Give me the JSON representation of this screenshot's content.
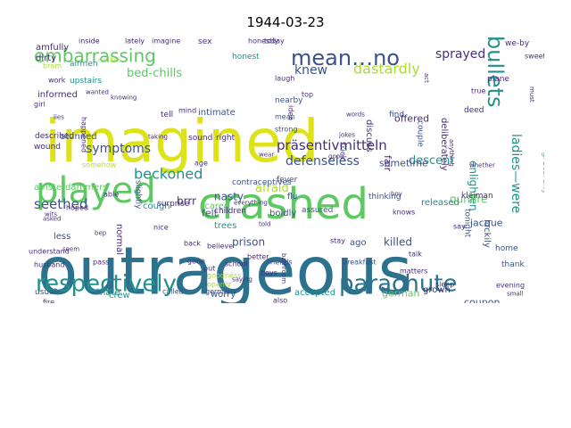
{
  "title": "1944-03-23",
  "palette": {
    "teal": "#2c728e",
    "blue": "#3b528b",
    "purple": "#472d7b",
    "green": "#5ec962",
    "lime": "#addc30",
    "yellow": "#dde318",
    "sea": "#21918c",
    "dark": "#440154"
  },
  "words": [
    {
      "text": "outrageous",
      "color": "#2c728e"
    },
    {
      "text": "imagined",
      "color": "#dde318"
    },
    {
      "text": "crashed",
      "color": "#5ec962"
    },
    {
      "text": "played",
      "color": "#5ec962"
    },
    {
      "text": "respectively",
      "color": "#21918c"
    },
    {
      "text": "parachute",
      "color": "#2c728e"
    },
    {
      "text": "mean…no",
      "color": "#3b528b"
    },
    {
      "text": "embarrassing",
      "color": "#5ec962"
    },
    {
      "text": "bullets",
      "color": "#21918c"
    },
    {
      "text": "symptoms",
      "color": "#3b528b"
    },
    {
      "text": "präsentivmitteln",
      "color": "#472d7b"
    },
    {
      "text": "beckoned",
      "color": "#21918c"
    },
    {
      "text": "seethed",
      "color": "#3b528b"
    },
    {
      "text": "defenseless",
      "color": "#3b528b"
    },
    {
      "text": "dastardly",
      "color": "#addc30"
    },
    {
      "text": "knew",
      "color": "#3b528b"
    },
    {
      "text": "descent",
      "color": "#21918c"
    },
    {
      "text": "bed-chills",
      "color": "#5ec962"
    },
    {
      "text": "sprayed",
      "color": "#472d7b"
    },
    {
      "text": "ladies—were",
      "color": "#21918c"
    },
    {
      "text": "enlighten",
      "color": "#21918c"
    },
    {
      "text": "afraid",
      "color": "#addc30"
    },
    {
      "text": "sometime",
      "color": "#3b528b"
    },
    {
      "text": "brrr",
      "color": "#472d7b"
    },
    {
      "text": "nasty",
      "color": "#3b528b"
    },
    {
      "text": "prison",
      "color": "#3b528b"
    },
    {
      "text": "killed",
      "color": "#3b528b"
    },
    {
      "text": "coupon",
      "color": "#3b528b"
    },
    {
      "text": "accepted",
      "color": "#21918c"
    },
    {
      "text": "amsterdammers",
      "color": "#5ec962"
    },
    {
      "text": "hate",
      "color": "#21918c"
    },
    {
      "text": "felt",
      "color": "#3b528b"
    },
    {
      "text": "trees",
      "color": "#21918c"
    },
    {
      "text": "worry",
      "color": "#3b528b"
    },
    {
      "text": "crew",
      "color": "#21918c"
    },
    {
      "text": "boldly",
      "color": "#3b528b"
    },
    {
      "text": "offered",
      "color": "#472d7b"
    },
    {
      "text": "gunfire",
      "color": "#5ec962"
    },
    {
      "text": "gratefully",
      "color": "#5ec962"
    },
    {
      "text": "jacque",
      "color": "#3b528b"
    },
    {
      "text": "luckily",
      "color": "#3b528b"
    },
    {
      "text": "amfully",
      "color": "#472d7b"
    },
    {
      "text": "dirty",
      "color": "#472d7b"
    },
    {
      "text": "airmen",
      "color": "#21918c"
    },
    {
      "text": "sex",
      "color": "#472d7b"
    },
    {
      "text": "honest",
      "color": "#21918c"
    },
    {
      "text": "nearby",
      "color": "#3b528b"
    },
    {
      "text": "intimate",
      "color": "#3b528b"
    },
    {
      "text": "described",
      "color": "#472d7b"
    },
    {
      "text": "wound",
      "color": "#472d7b"
    },
    {
      "text": "cough",
      "color": "#21918c"
    },
    {
      "text": "scared",
      "color": "#5ec962"
    },
    {
      "text": "contraceptives",
      "color": "#3b528b"
    },
    {
      "text": "fever",
      "color": "#3b528b"
    },
    {
      "text": "flu",
      "color": "#3b528b"
    },
    {
      "text": "assured",
      "color": "#3b528b"
    },
    {
      "text": "released",
      "color": "#21918c"
    },
    {
      "text": "discuss",
      "color": "#472d7b"
    },
    {
      "text": "fair",
      "color": "#472d7b"
    },
    {
      "text": "thinking",
      "color": "#3b528b"
    },
    {
      "text": "german",
      "color": "#5ec962"
    },
    {
      "text": "grown",
      "color": "#472d7b"
    },
    {
      "text": "kleiman",
      "color": "#472d7b"
    },
    {
      "text": "ago",
      "color": "#3b528b"
    },
    {
      "text": "less",
      "color": "#3b528b"
    },
    {
      "text": "pass",
      "color": "#472d7b"
    },
    {
      "text": "slightly",
      "color": "#3b528b"
    },
    {
      "text": "deliberately",
      "color": "#472d7b"
    },
    {
      "text": "deed",
      "color": "#472d7b"
    },
    {
      "text": "plane",
      "color": "#472d7b"
    },
    {
      "text": "sound",
      "color": "#472d7b"
    },
    {
      "text": "right",
      "color": "#472d7b"
    },
    {
      "text": "tell",
      "color": "#472d7b"
    },
    {
      "text": "mean",
      "color": "#3b528b"
    },
    {
      "text": "strong",
      "color": "#3b528b"
    },
    {
      "text": "trick",
      "color": "#3b528b"
    },
    {
      "text": "couple",
      "color": "#3b528b"
    },
    {
      "text": "find",
      "color": "#3b528b"
    },
    {
      "text": "thank",
      "color": "#3b528b"
    },
    {
      "text": "home",
      "color": "#3b528b"
    },
    {
      "text": "inside",
      "color": "#472d7b"
    },
    {
      "text": "lately",
      "color": "#472d7b"
    },
    {
      "text": "imagine",
      "color": "#472d7b"
    },
    {
      "text": "honestly",
      "color": "#472d7b"
    },
    {
      "text": "today",
      "color": "#472d7b"
    },
    {
      "text": "we-by",
      "color": "#472d7b"
    },
    {
      "text": "upstairs",
      "color": "#21918c"
    },
    {
      "text": "stunned",
      "color": "#3b528b"
    },
    {
      "text": "tonight",
      "color": "#3b528b"
    },
    {
      "text": "friends",
      "color": "#3b528b"
    },
    {
      "text": "breakfast",
      "color": "#3b528b"
    },
    {
      "text": "germans",
      "color": "#3b528b"
    },
    {
      "text": "called",
      "color": "#3b528b"
    },
    {
      "text": "usual",
      "color": "#3b528b"
    },
    {
      "text": "fire",
      "color": "#472d7b"
    },
    {
      "text": "husband",
      "color": "#472d7b"
    },
    {
      "text": "understand",
      "color": "#472d7b"
    },
    {
      "text": "gone",
      "color": "#472d7b"
    },
    {
      "text": "back",
      "color": "#472d7b"
    },
    {
      "text": "better",
      "color": "#472d7b"
    },
    {
      "text": "believe",
      "color": "#472d7b"
    },
    {
      "text": "nice",
      "color": "#472d7b"
    },
    {
      "text": "put",
      "color": "#472d7b"
    },
    {
      "text": "boys",
      "color": "#472d7b"
    },
    {
      "text": "talk",
      "color": "#472d7b"
    },
    {
      "text": "stay",
      "color": "#472d7b"
    },
    {
      "text": "say",
      "color": "#472d7b"
    },
    {
      "text": "evening",
      "color": "#472d7b"
    },
    {
      "text": "small",
      "color": "#472d7b"
    },
    {
      "text": "sweet",
      "color": "#472d7b"
    },
    {
      "text": "must",
      "color": "#472d7b"
    },
    {
      "text": "informed",
      "color": "#472d7b"
    },
    {
      "text": "bram",
      "color": "#addc30"
    },
    {
      "text": "laugh",
      "color": "#472d7b"
    },
    {
      "text": "girl",
      "color": "#472d7b"
    },
    {
      "text": "act",
      "color": "#472d7b"
    },
    {
      "text": "top",
      "color": "#472d7b"
    },
    {
      "text": "boy",
      "color": "#472d7b"
    },
    {
      "text": "knows",
      "color": "#472d7b"
    },
    {
      "text": "children",
      "color": "#472d7b"
    },
    {
      "text": "goodness",
      "color": "#addc30"
    },
    {
      "text": "also",
      "color": "#472d7b"
    },
    {
      "text": "sleep",
      "color": "#472d7b"
    },
    {
      "text": "matters",
      "color": "#472d7b"
    },
    {
      "text": "bathroom",
      "color": "#472d7b"
    },
    {
      "text": "neither",
      "color": "#addc30"
    },
    {
      "text": "work",
      "color": "#472d7b"
    },
    {
      "text": "true",
      "color": "#472d7b"
    },
    {
      "text": "mind",
      "color": "#472d7b"
    },
    {
      "text": "age",
      "color": "#472d7b"
    },
    {
      "text": "surprise",
      "color": "#472d7b"
    },
    {
      "text": "normal",
      "color": "#472d7b"
    },
    {
      "text": "school",
      "color": "#472d7b"
    },
    {
      "text": "openly",
      "color": "#addc30"
    },
    {
      "text": "somehow",
      "color": "#addc30"
    },
    {
      "text": "wits",
      "color": "#472d7b"
    },
    {
      "text": "hoped",
      "color": "#472d7b"
    },
    {
      "text": "seem",
      "color": "#472d7b"
    },
    {
      "text": "asked",
      "color": "#472d7b"
    },
    {
      "text": "able",
      "color": "#472d7b"
    },
    {
      "text": "bep",
      "color": "#472d7b"
    },
    {
      "text": "taking",
      "color": "#472d7b"
    },
    {
      "text": "knowing",
      "color": "#472d7b"
    },
    {
      "text": "wanted",
      "color": "#472d7b"
    },
    {
      "text": "happened",
      "color": "#472d7b"
    },
    {
      "text": "anything",
      "color": "#472d7b"
    },
    {
      "text": "whether",
      "color": "#472d7b"
    },
    {
      "text": "everything",
      "color": "#472d7b"
    },
    {
      "text": "saying",
      "color": "#472d7b"
    },
    {
      "text": "told",
      "color": "#472d7b"
    },
    {
      "text": "idea",
      "color": "#472d7b"
    },
    {
      "text": "good",
      "color": "#472d7b"
    },
    {
      "text": "jokes",
      "color": "#472d7b"
    },
    {
      "text": "lies",
      "color": "#472d7b"
    },
    {
      "text": "words",
      "color": "#472d7b"
    },
    {
      "text": "wear",
      "color": "#472d7b"
    }
  ]
}
